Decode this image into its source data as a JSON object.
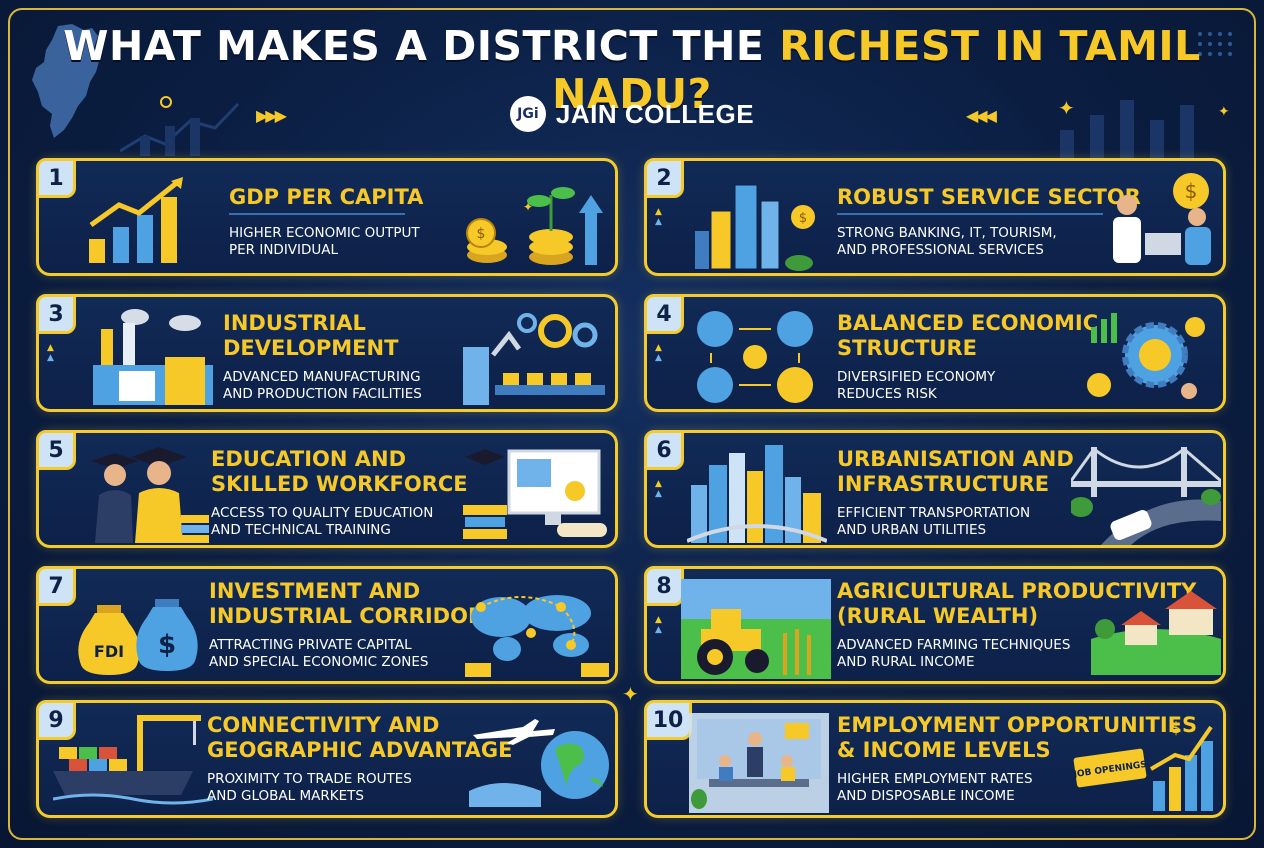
{
  "header": {
    "title_main": "WHAT MAKES A DISTRICT THE ",
    "title_highlight": "RICHEST IN TAMIL NADU?",
    "brand_logo": "JGi",
    "brand_name": "JAIN COLLEGE"
  },
  "colors": {
    "background": "#0b1e42",
    "accent_yellow": "#f3cb2c",
    "card_bg": "#112a56",
    "text_white": "#ffffff",
    "badge_bg": "#cfe3f6"
  },
  "cards": [
    {
      "number": "1",
      "title_lines": [
        "GDP PER CAPITA"
      ],
      "desc_lines": [
        "HIGHER ECONOMIC OUTPUT",
        "PER INDIVIDUAL"
      ],
      "icons": [
        "bar-chart-arrow-icon",
        "coins-plant-icon"
      ]
    },
    {
      "number": "2",
      "title_lines": [
        "ROBUST SERVICE SECTOR"
      ],
      "desc_lines": [
        "STRONG BANKING, IT, TOURISM,",
        "AND PROFESSIONAL SERVICES"
      ],
      "icons": [
        "skyscrapers-icon",
        "professionals-laptop-icon"
      ]
    },
    {
      "number": "3",
      "title_lines": [
        "INDUSTRIAL",
        "DEVELOPMENT"
      ],
      "desc_lines": [
        "ADVANCED MANUFACTURING",
        "AND PRODUCTION FACILITIES"
      ],
      "icons": [
        "factory-icon",
        "robot-assembly-line-icon"
      ]
    },
    {
      "number": "4",
      "title_lines": [
        "BALANCED ECONOMIC",
        "STRUCTURE"
      ],
      "desc_lines": [
        "DIVERSIFIED ECONOMY",
        "REDUCES RISK"
      ],
      "icons": [
        "sector-cycle-icon",
        "gear-chart-icon"
      ]
    },
    {
      "number": "5",
      "title_lines": [
        "EDUCATION AND",
        "SKILLED WORKFORCE"
      ],
      "desc_lines": [
        "ACCESS TO QUALITY EDUCATION",
        "AND TECHNICAL TRAINING"
      ],
      "icons": [
        "graduates-icon",
        "books-computer-certificate-icon"
      ]
    },
    {
      "number": "6",
      "title_lines": [
        "URBANISATION AND",
        "INFRASTRUCTURE"
      ],
      "desc_lines": [
        "EFFICIENT TRANSPORTATION",
        "AND URBAN UTILITIES"
      ],
      "icons": [
        "city-skyline-icon",
        "bridge-metro-icon"
      ]
    },
    {
      "number": "7",
      "title_lines": [
        "INVESTMENT AND",
        "INDUSTRIAL CORRIDORS"
      ],
      "desc_lines": [
        "ATTRACTING PRIVATE CAPITAL",
        "AND SPECIAL ECONOMIC ZONES"
      ],
      "icons": [
        "money-bags-icon",
        "world-map-network-icon"
      ],
      "bag_labels": [
        "FDI",
        "$"
      ]
    },
    {
      "number": "8",
      "title_lines": [
        "AGRICULTURAL PRODUCTIVITY",
        "(RURAL WEALTH)"
      ],
      "desc_lines": [
        "ADVANCED FARMING TECHNIQUES",
        "AND RURAL INCOME"
      ],
      "icons": [
        "tractor-field-icon",
        "farmhouses-icon"
      ]
    },
    {
      "number": "9",
      "title_lines": [
        "CONNECTIVITY AND",
        "GEOGRAPHIC ADVANTAGE"
      ],
      "desc_lines": [
        "PROXIMITY TO TRADE ROUTES",
        "AND GLOBAL MARKETS"
      ],
      "icons": [
        "cargo-ship-crane-icon",
        "airplane-globe-icon"
      ]
    },
    {
      "number": "10",
      "title_lines": [
        "EMPLOYMENT OPPORTUNITIES",
        "& INCOME LEVELS"
      ],
      "desc_lines": [
        "HIGHER EMPLOYMENT RATES",
        "AND DISPOSABLE INCOME"
      ],
      "icons": [
        "office-meeting-icon",
        "job-openings-chart-icon"
      ],
      "sign_label": "JOB OPENINGS"
    }
  ]
}
